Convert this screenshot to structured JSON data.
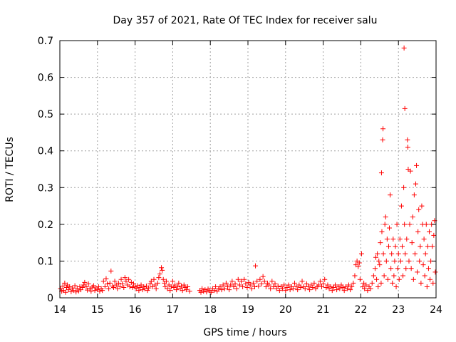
{
  "chart_data": {
    "type": "scatter",
    "title": "Day 357 of 2021, Rate Of TEC Index for receiver salu",
    "xlabel": "GPS time / hours",
    "ylabel": "ROTI / TECUs",
    "xlim": [
      14,
      24
    ],
    "ylim": [
      0,
      0.7
    ],
    "xticks": [
      "14",
      "15",
      "16",
      "17",
      "18",
      "19",
      "20",
      "21",
      "22",
      "23",
      "24"
    ],
    "yticks": [
      "0",
      "0.1",
      "0.2",
      "0.3",
      "0.4",
      "0.5",
      "0.6",
      "0.7"
    ],
    "grid": true,
    "marker": "+",
    "series_color": "#ff0000",
    "points": [
      [
        14.02,
        0.025
      ],
      [
        14.05,
        0.018
      ],
      [
        14.08,
        0.032
      ],
      [
        14.1,
        0.02
      ],
      [
        14.13,
        0.04
      ],
      [
        14.15,
        0.015
      ],
      [
        14.18,
        0.028
      ],
      [
        14.2,
        0.035
      ],
      [
        14.23,
        0.022
      ],
      [
        14.26,
        0.03
      ],
      [
        14.3,
        0.017
      ],
      [
        14.33,
        0.027
      ],
      [
        14.36,
        0.02
      ],
      [
        14.4,
        0.033
      ],
      [
        14.43,
        0.016
      ],
      [
        14.46,
        0.025
      ],
      [
        14.5,
        0.019
      ],
      [
        14.53,
        0.03
      ],
      [
        14.56,
        0.022
      ],
      [
        14.6,
        0.028
      ],
      [
        14.63,
        0.035
      ],
      [
        14.66,
        0.042
      ],
      [
        14.7,
        0.03
      ],
      [
        14.73,
        0.021
      ],
      [
        14.76,
        0.038
      ],
      [
        14.8,
        0.026
      ],
      [
        14.83,
        0.018
      ],
      [
        14.86,
        0.029
      ],
      [
        14.9,
        0.033
      ],
      [
        14.93,
        0.02
      ],
      [
        14.96,
        0.027
      ],
      [
        15.0,
        0.022
      ],
      [
        15.03,
        0.03
      ],
      [
        15.06,
        0.018
      ],
      [
        15.1,
        0.025
      ],
      [
        15.13,
        0.02
      ],
      [
        15.16,
        0.045
      ],
      [
        15.2,
        0.03
      ],
      [
        15.23,
        0.052
      ],
      [
        15.26,
        0.038
      ],
      [
        15.3,
        0.025
      ],
      [
        15.33,
        0.04
      ],
      [
        15.36,
        0.073
      ],
      [
        15.4,
        0.032
      ],
      [
        15.43,
        0.028
      ],
      [
        15.46,
        0.045
      ],
      [
        15.5,
        0.035
      ],
      [
        15.53,
        0.025
      ],
      [
        15.56,
        0.04
      ],
      [
        15.6,
        0.03
      ],
      [
        15.63,
        0.05
      ],
      [
        15.66,
        0.038
      ],
      [
        15.7,
        0.028
      ],
      [
        15.73,
        0.055
      ],
      [
        15.76,
        0.045
      ],
      [
        15.8,
        0.035
      ],
      [
        15.83,
        0.05
      ],
      [
        15.86,
        0.03
      ],
      [
        15.9,
        0.042
      ],
      [
        15.93,
        0.028
      ],
      [
        15.96,
        0.038
      ],
      [
        16.0,
        0.03
      ],
      [
        16.03,
        0.025
      ],
      [
        16.06,
        0.033
      ],
      [
        16.1,
        0.02
      ],
      [
        16.13,
        0.028
      ],
      [
        16.16,
        0.035
      ],
      [
        16.2,
        0.022
      ],
      [
        16.23,
        0.03
      ],
      [
        16.26,
        0.025
      ],
      [
        16.3,
        0.032
      ],
      [
        16.33,
        0.02
      ],
      [
        16.36,
        0.027
      ],
      [
        16.4,
        0.038
      ],
      [
        16.43,
        0.045
      ],
      [
        16.46,
        0.03
      ],
      [
        16.5,
        0.05
      ],
      [
        16.53,
        0.035
      ],
      [
        16.56,
        0.025
      ],
      [
        16.6,
        0.04
      ],
      [
        16.63,
        0.055
      ],
      [
        16.66,
        0.065
      ],
      [
        16.7,
        0.082
      ],
      [
        16.72,
        0.075
      ],
      [
        16.75,
        0.05
      ],
      [
        16.78,
        0.04
      ],
      [
        16.8,
        0.03
      ],
      [
        16.83,
        0.045
      ],
      [
        16.86,
        0.025
      ],
      [
        16.9,
        0.035
      ],
      [
        16.93,
        0.02
      ],
      [
        16.96,
        0.03
      ],
      [
        17.0,
        0.045
      ],
      [
        17.03,
        0.028
      ],
      [
        17.06,
        0.035
      ],
      [
        17.1,
        0.022
      ],
      [
        17.13,
        0.03
      ],
      [
        17.16,
        0.04
      ],
      [
        17.2,
        0.025
      ],
      [
        17.23,
        0.032
      ],
      [
        17.26,
        0.02
      ],
      [
        17.3,
        0.035
      ],
      [
        17.33,
        0.028
      ],
      [
        17.36,
        0.022
      ],
      [
        17.4,
        0.03
      ],
      [
        17.45,
        0.018
      ],
      [
        17.72,
        0.02
      ],
      [
        17.75,
        0.015
      ],
      [
        17.78,
        0.025
      ],
      [
        17.82,
        0.018
      ],
      [
        17.86,
        0.022
      ],
      [
        17.9,
        0.016
      ],
      [
        17.94,
        0.024
      ],
      [
        17.98,
        0.02
      ],
      [
        18.02,
        0.015
      ],
      [
        18.06,
        0.025
      ],
      [
        18.1,
        0.02
      ],
      [
        18.14,
        0.03
      ],
      [
        18.18,
        0.018
      ],
      [
        18.22,
        0.025
      ],
      [
        18.26,
        0.03
      ],
      [
        18.3,
        0.022
      ],
      [
        18.34,
        0.035
      ],
      [
        18.38,
        0.025
      ],
      [
        18.42,
        0.04
      ],
      [
        18.46,
        0.03
      ],
      [
        18.5,
        0.022
      ],
      [
        18.54,
        0.035
      ],
      [
        18.58,
        0.045
      ],
      [
        18.62,
        0.03
      ],
      [
        18.66,
        0.038
      ],
      [
        18.7,
        0.025
      ],
      [
        18.74,
        0.05
      ],
      [
        18.78,
        0.035
      ],
      [
        18.82,
        0.045
      ],
      [
        18.86,
        0.03
      ],
      [
        18.9,
        0.05
      ],
      [
        18.94,
        0.038
      ],
      [
        18.98,
        0.028
      ],
      [
        19.02,
        0.042
      ],
      [
        19.06,
        0.035
      ],
      [
        19.1,
        0.025
      ],
      [
        19.14,
        0.04
      ],
      [
        19.18,
        0.03
      ],
      [
        19.2,
        0.087
      ],
      [
        19.24,
        0.045
      ],
      [
        19.28,
        0.032
      ],
      [
        19.32,
        0.05
      ],
      [
        19.36,
        0.038
      ],
      [
        19.4,
        0.058
      ],
      [
        19.44,
        0.045
      ],
      [
        19.48,
        0.03
      ],
      [
        19.52,
        0.04
      ],
      [
        19.56,
        0.035
      ],
      [
        19.6,
        0.025
      ],
      [
        19.64,
        0.045
      ],
      [
        19.68,
        0.03
      ],
      [
        19.72,
        0.038
      ],
      [
        19.76,
        0.025
      ],
      [
        19.8,
        0.032
      ],
      [
        19.84,
        0.02
      ],
      [
        19.88,
        0.03
      ],
      [
        19.92,
        0.025
      ],
      [
        19.96,
        0.035
      ],
      [
        20.0,
        0.02
      ],
      [
        20.04,
        0.028
      ],
      [
        20.08,
        0.035
      ],
      [
        20.12,
        0.022
      ],
      [
        20.16,
        0.03
      ],
      [
        20.2,
        0.025
      ],
      [
        20.24,
        0.04
      ],
      [
        20.28,
        0.03
      ],
      [
        20.32,
        0.022
      ],
      [
        20.36,
        0.035
      ],
      [
        20.4,
        0.028
      ],
      [
        20.44,
        0.045
      ],
      [
        20.48,
        0.03
      ],
      [
        20.52,
        0.025
      ],
      [
        20.56,
        0.038
      ],
      [
        20.6,
        0.03
      ],
      [
        20.64,
        0.022
      ],
      [
        20.68,
        0.035
      ],
      [
        20.72,
        0.028
      ],
      [
        20.76,
        0.04
      ],
      [
        20.8,
        0.025
      ],
      [
        20.84,
        0.03
      ],
      [
        20.88,
        0.035
      ],
      [
        20.92,
        0.045
      ],
      [
        20.96,
        0.03
      ],
      [
        21.0,
        0.038
      ],
      [
        21.04,
        0.05
      ],
      [
        21.08,
        0.028
      ],
      [
        21.12,
        0.035
      ],
      [
        21.16,
        0.025
      ],
      [
        21.2,
        0.03
      ],
      [
        21.24,
        0.02
      ],
      [
        21.28,
        0.028
      ],
      [
        21.32,
        0.035
      ],
      [
        21.36,
        0.022
      ],
      [
        21.4,
        0.03
      ],
      [
        21.44,
        0.025
      ],
      [
        21.48,
        0.035
      ],
      [
        21.52,
        0.028
      ],
      [
        21.56,
        0.02
      ],
      [
        21.6,
        0.03
      ],
      [
        21.64,
        0.025
      ],
      [
        21.68,
        0.035
      ],
      [
        21.72,
        0.022
      ],
      [
        21.76,
        0.03
      ],
      [
        21.8,
        0.04
      ],
      [
        21.84,
        0.06
      ],
      [
        21.87,
        0.09
      ],
      [
        21.9,
        0.1
      ],
      [
        21.93,
        0.085
      ],
      [
        21.96,
        0.095
      ],
      [
        21.98,
        0.05
      ],
      [
        22.02,
        0.12
      ],
      [
        22.05,
        0.03
      ],
      [
        22.08,
        0.04
      ],
      [
        22.1,
        0.025
      ],
      [
        22.14,
        0.035
      ],
      [
        22.18,
        0.02
      ],
      [
        22.22,
        0.03
      ],
      [
        22.26,
        0.025
      ],
      [
        22.3,
        0.04
      ],
      [
        22.34,
        0.06
      ],
      [
        22.38,
        0.08
      ],
      [
        22.4,
        0.11
      ],
      [
        22.42,
        0.05
      ],
      [
        22.44,
        0.12
      ],
      [
        22.46,
        0.03
      ],
      [
        22.48,
        0.1
      ],
      [
        22.5,
        0.09
      ],
      [
        22.52,
        0.15
      ],
      [
        22.54,
        0.04
      ],
      [
        22.55,
        0.34
      ],
      [
        22.56,
        0.18
      ],
      [
        22.58,
        0.43
      ],
      [
        22.59,
        0.46
      ],
      [
        22.6,
        0.12
      ],
      [
        22.62,
        0.06
      ],
      [
        22.64,
        0.2
      ],
      [
        22.66,
        0.22
      ],
      [
        22.68,
        0.1
      ],
      [
        22.7,
        0.16
      ],
      [
        22.72,
        0.05
      ],
      [
        22.74,
        0.14
      ],
      [
        22.76,
        0.19
      ],
      [
        22.78,
        0.28
      ],
      [
        22.8,
        0.08
      ],
      [
        22.82,
        0.12
      ],
      [
        22.84,
        0.04
      ],
      [
        22.86,
        0.16
      ],
      [
        22.88,
        0.06
      ],
      [
        22.9,
        0.1
      ],
      [
        22.92,
        0.14
      ],
      [
        22.94,
        0.03
      ],
      [
        22.96,
        0.2
      ],
      [
        22.98,
        0.08
      ],
      [
        23.0,
        0.12
      ],
      [
        23.02,
        0.05
      ],
      [
        23.04,
        0.16
      ],
      [
        23.06,
        0.1
      ],
      [
        23.08,
        0.25
      ],
      [
        23.1,
        0.14
      ],
      [
        23.12,
        0.06
      ],
      [
        23.14,
        0.3
      ],
      [
        23.15,
        0.68
      ],
      [
        23.16,
        0.2
      ],
      [
        23.17,
        0.515
      ],
      [
        23.18,
        0.12
      ],
      [
        23.2,
        0.08
      ],
      [
        23.22,
        0.16
      ],
      [
        23.24,
        0.43
      ],
      [
        23.25,
        0.41
      ],
      [
        23.26,
        0.35
      ],
      [
        23.28,
        0.1
      ],
      [
        23.3,
        0.2
      ],
      [
        23.32,
        0.345
      ],
      [
        23.34,
        0.08
      ],
      [
        23.36,
        0.15
      ],
      [
        23.38,
        0.22
      ],
      [
        23.4,
        0.05
      ],
      [
        23.42,
        0.28
      ],
      [
        23.44,
        0.12
      ],
      [
        23.46,
        0.31
      ],
      [
        23.48,
        0.36
      ],
      [
        23.5,
        0.07
      ],
      [
        23.52,
        0.18
      ],
      [
        23.54,
        0.24
      ],
      [
        23.56,
        0.1
      ],
      [
        23.58,
        0.14
      ],
      [
        23.6,
        0.04
      ],
      [
        23.62,
        0.25
      ],
      [
        23.64,
        0.2
      ],
      [
        23.66,
        0.09
      ],
      [
        23.68,
        0.16
      ],
      [
        23.7,
        0.06
      ],
      [
        23.72,
        0.12
      ],
      [
        23.74,
        0.2
      ],
      [
        23.76,
        0.03
      ],
      [
        23.78,
        0.14
      ],
      [
        23.8,
        0.08
      ],
      [
        23.82,
        0.18
      ],
      [
        23.84,
        0.05
      ],
      [
        23.86,
        0.1
      ],
      [
        23.88,
        0.2
      ],
      [
        23.9,
        0.14
      ],
      [
        23.92,
        0.04
      ],
      [
        23.94,
        0.17
      ],
      [
        23.96,
        0.21
      ],
      [
        23.98,
        0.07
      ]
    ]
  }
}
